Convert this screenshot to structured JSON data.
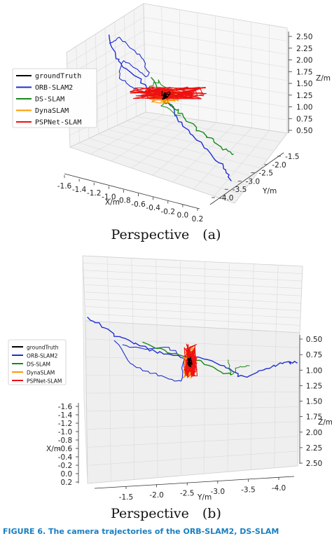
{
  "figure_caption": "FIGURE 6.  The camera trajectories of the ORB-SLAM2, DS-SLAM",
  "colors": {
    "groundTruth": "#000000",
    "ORB-SLAM2": "#1f2fd0",
    "DS-SLAM": "#1a8a1a",
    "DynaSLAM": "#ff9900",
    "PSPNet-SLAM": "#ee1111"
  },
  "chart_data": [
    {
      "type": "line",
      "caption": "Perspective　(a)",
      "projection": "3d",
      "legend_position": "left",
      "xlabel": "X/m",
      "ylabel": "Y/m",
      "zlabel": "Z/m",
      "x_ticks": [
        "-1.6",
        "-1.4",
        "-1.2",
        "-1.0",
        "-0.8",
        "-0.6",
        "-0.4",
        "-0.2",
        "0.0",
        "0.2"
      ],
      "y_ticks": [
        "-4.0",
        "-3.5",
        "-3.0",
        "-2.5",
        "-2.0",
        "-1.5"
      ],
      "z_ticks": [
        "0.50",
        "0.75",
        "1.00",
        "1.25",
        "1.50",
        "1.75",
        "2.00",
        "2.25",
        "2.50"
      ],
      "legend": [
        "groundTruth",
        "ORB-SLAM2",
        "DS-SLAM",
        "DynaSLAM",
        "PSPNet-SLAM"
      ]
    },
    {
      "type": "line",
      "caption": "Perspective　(b)",
      "projection": "3d",
      "legend_position": "left",
      "xlabel": "X/m",
      "ylabel": "Y/m",
      "zlabel": "Z/m",
      "x_ticks": [
        "-1.6",
        "-1.4",
        "-1.2",
        "-1.0",
        "-0.8",
        "-0.6",
        "-0.4",
        "-0.2",
        "0.0",
        "0.2"
      ],
      "y_ticks": [
        "-1.5",
        "-2.0",
        "-2.5",
        "-3.0",
        "-3.5",
        "-4.0"
      ],
      "z_ticks": [
        "0.50",
        "0.75",
        "1.00",
        "1.25",
        "1.50",
        "1.75",
        "2.00",
        "2.25",
        "2.50"
      ],
      "legend": [
        "groundTruth",
        "ORB-SLAM2",
        "DS-SLAM",
        "DynaSLAM",
        "PSPNet-SLAM"
      ]
    }
  ]
}
